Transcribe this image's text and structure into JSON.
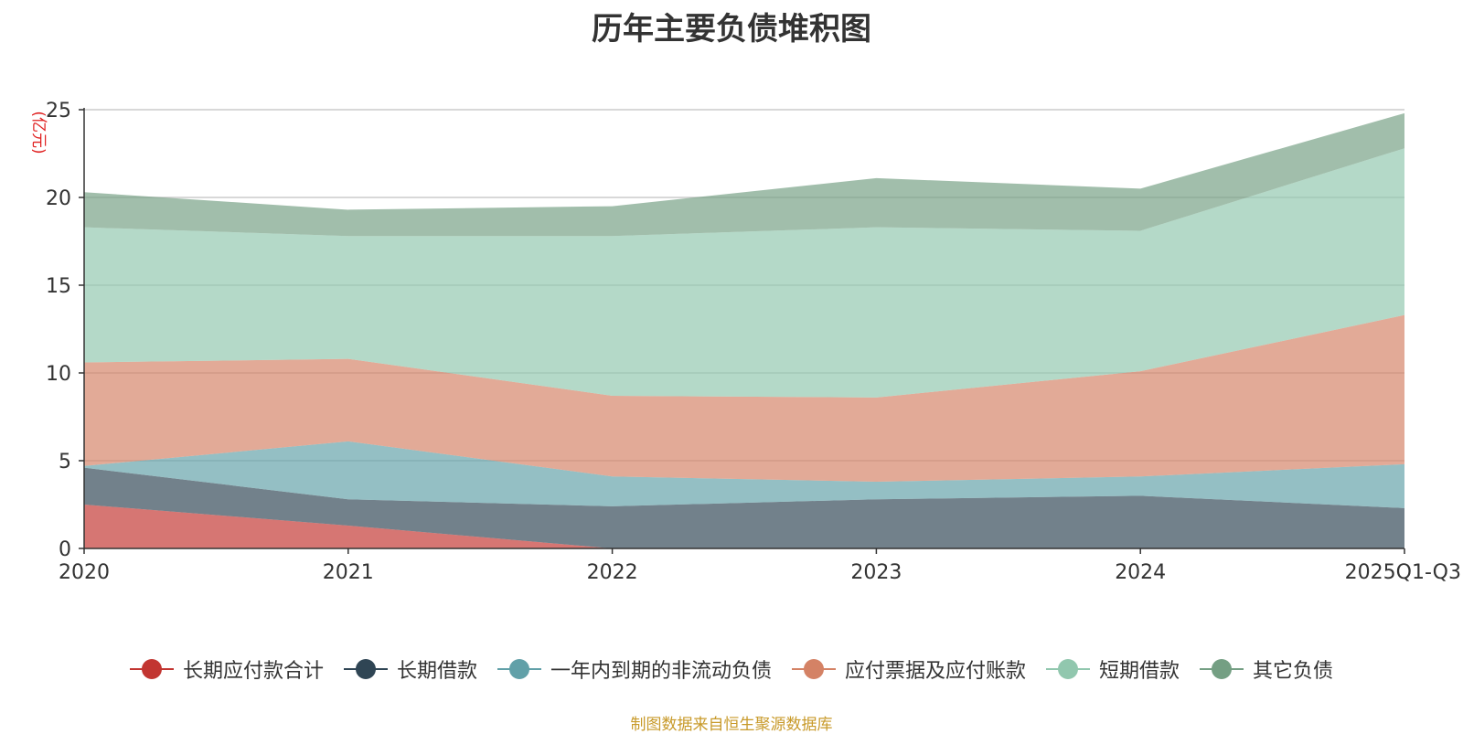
{
  "chart_data": {
    "type": "area",
    "stacked": true,
    "title": "历年主要负债堆积图",
    "y_unit": "(亿元)",
    "categories": [
      "2020",
      "2021",
      "2022",
      "2023",
      "2024",
      "2025Q1-Q3"
    ],
    "ylim": [
      0,
      25
    ],
    "y_ticks": [
      0,
      5,
      10,
      15,
      20,
      25
    ],
    "grid": true,
    "legend_position": "bottom",
    "series": [
      {
        "name": "长期应付款合计",
        "color": "#c23531",
        "values": [
          2.5,
          1.3,
          0.0,
          0.0,
          0.0,
          0.0
        ]
      },
      {
        "name": "长期借款",
        "color": "#2f4554",
        "values": [
          2.1,
          1.5,
          2.4,
          2.8,
          3.0,
          2.3
        ]
      },
      {
        "name": "一年内到期的非流动负债",
        "color": "#61a0a8",
        "values": [
          0.1,
          3.3,
          1.7,
          1.0,
          1.1,
          2.5
        ]
      },
      {
        "name": "应付票据及应付账款",
        "color": "#d48265",
        "values": [
          5.9,
          4.7,
          4.6,
          4.8,
          6.0,
          8.5
        ]
      },
      {
        "name": "短期借款",
        "color": "#91c7ae",
        "values": [
          7.7,
          7.0,
          9.1,
          9.7,
          8.0,
          9.5
        ]
      },
      {
        "name": "其它负债",
        "color": "#749f83",
        "values": [
          2.0,
          1.5,
          1.7,
          2.8,
          2.4,
          2.0
        ]
      }
    ],
    "source_note": "制图数据来自恒生聚源数据库"
  }
}
